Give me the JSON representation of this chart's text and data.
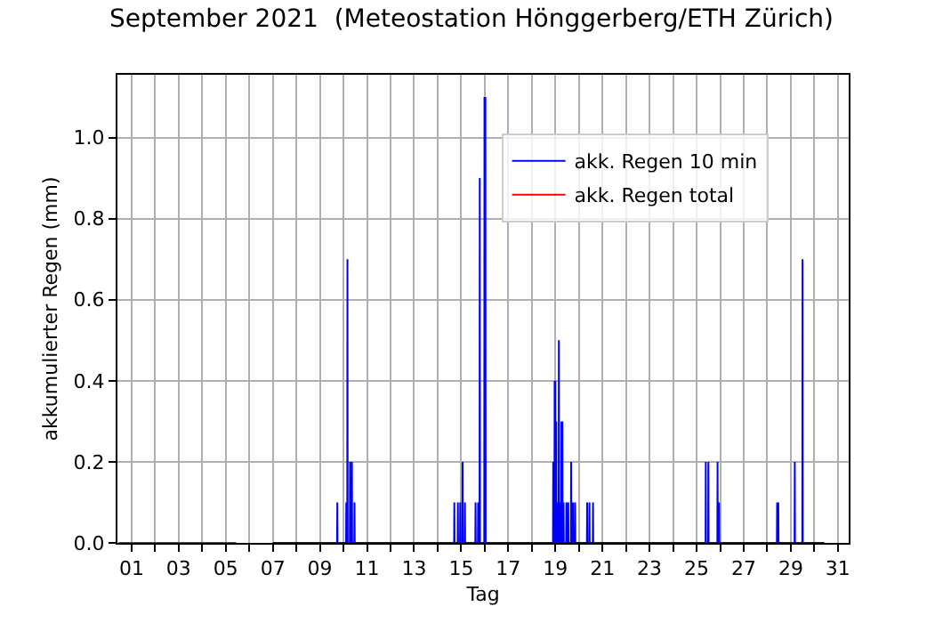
{
  "chart_data": {
    "type": "line",
    "title": "September 2021  (Meteostation Hönggerberg/ETH Zürich)",
    "xlabel": "Tag",
    "ylabel": "akkumulierter Regen (mm)",
    "xlim": [
      0.4,
      31.46
    ],
    "ylim": [
      0,
      1.155
    ],
    "xticks": [
      {
        "value": 1,
        "label": "01"
      },
      {
        "value": 2,
        "label": null
      },
      {
        "value": 3,
        "label": "03"
      },
      {
        "value": 4,
        "label": null
      },
      {
        "value": 5,
        "label": "05"
      },
      {
        "value": 6,
        "label": null
      },
      {
        "value": 7,
        "label": "07"
      },
      {
        "value": 8,
        "label": null
      },
      {
        "value": 9,
        "label": "09"
      },
      {
        "value": 10,
        "label": null
      },
      {
        "value": 11,
        "label": "11"
      },
      {
        "value": 12,
        "label": null
      },
      {
        "value": 13,
        "label": "13"
      },
      {
        "value": 14,
        "label": null
      },
      {
        "value": 15,
        "label": "15"
      },
      {
        "value": 16,
        "label": null
      },
      {
        "value": 17,
        "label": "17"
      },
      {
        "value": 18,
        "label": null
      },
      {
        "value": 19,
        "label": "19"
      },
      {
        "value": 20,
        "label": null
      },
      {
        "value": 21,
        "label": "21"
      },
      {
        "value": 22,
        "label": null
      },
      {
        "value": 23,
        "label": "23"
      },
      {
        "value": 24,
        "label": null
      },
      {
        "value": 25,
        "label": "25"
      },
      {
        "value": 26,
        "label": null
      },
      {
        "value": 27,
        "label": "27"
      },
      {
        "value": 28,
        "label": null
      },
      {
        "value": 29,
        "label": "29"
      },
      {
        "value": 30,
        "label": null
      },
      {
        "value": 31,
        "label": "31"
      }
    ],
    "yticks": [
      {
        "value": 0,
        "label": "0.0"
      },
      {
        "value": 0.2,
        "label": "0.2"
      },
      {
        "value": 0.4,
        "label": "0.4"
      },
      {
        "value": 0.6,
        "label": "0.6"
      },
      {
        "value": 0.8,
        "label": "0.8"
      },
      {
        "value": 1.0,
        "label": "1.0"
      }
    ],
    "grid": true,
    "legend": "right",
    "marker": "none",
    "line_style": "solid",
    "series": [
      {
        "name": "akk. Regen 10 min",
        "color": "#0000ff",
        "x": [
          7.0,
          9.73,
          9.74,
          9.75,
          10.11,
          10.12,
          10.13,
          10.16,
          10.17,
          10.18,
          10.27,
          10.28,
          10.29,
          10.35,
          10.36,
          10.37,
          10.46,
          10.47,
          10.48,
          14.7,
          14.71,
          14.72,
          14.85,
          14.86,
          14.87,
          14.95,
          14.96,
          14.97,
          15.05,
          15.06,
          15.07,
          15.15,
          15.16,
          15.17,
          15.6,
          15.61,
          15.62,
          15.71,
          15.72,
          15.73,
          15.78,
          15.79,
          15.8,
          15.98,
          15.99,
          16.0,
          16.02,
          16.03,
          16.04,
          18.9,
          18.91,
          18.92,
          18.96,
          18.97,
          18.98,
          18.99,
          19.0,
          19.01,
          19.03,
          19.04,
          19.05,
          19.09,
          19.1,
          19.11,
          19.14,
          19.15,
          19.16,
          19.19,
          19.2,
          19.21,
          19.25,
          19.26,
          19.27,
          19.29,
          19.3,
          19.31,
          19.34,
          19.35,
          19.36,
          19.46,
          19.47,
          19.48,
          19.54,
          19.55,
          19.56,
          19.66,
          19.67,
          19.68,
          19.74,
          19.75,
          19.76,
          19.83,
          19.84,
          19.85,
          20.34,
          20.35,
          20.36,
          20.44,
          20.45,
          20.46,
          20.59,
          20.6,
          20.61,
          25.38,
          25.39,
          25.4,
          25.49,
          25.5,
          25.51,
          25.88,
          25.89,
          25.9,
          25.94,
          25.95,
          25.96,
          28.41,
          28.42,
          28.43,
          28.46,
          28.47,
          28.48,
          29.16,
          29.17,
          29.18,
          29.49,
          29.5,
          29.51,
          30.43
        ],
        "values": [
          0,
          0,
          0.1,
          0,
          0,
          0.1,
          0,
          0,
          0.7,
          0,
          0,
          0.2,
          0,
          0,
          0.2,
          0,
          0,
          0.1,
          0,
          0,
          0.1,
          0,
          0,
          0.1,
          0,
          0,
          0.1,
          0,
          0,
          0.2,
          0,
          0,
          0.1,
          0,
          0,
          0.1,
          0,
          0,
          0.1,
          0,
          0,
          0.9,
          0,
          0,
          1.1,
          0,
          0,
          1.1,
          0,
          0,
          0.2,
          0,
          0,
          0.4,
          0,
          0,
          0.4,
          0,
          0,
          0.3,
          0,
          0,
          0.1,
          0,
          0,
          0.5,
          0,
          0,
          0.1,
          0,
          0,
          0.3,
          0,
          0,
          0.3,
          0,
          0,
          0.1,
          0,
          0,
          0.1,
          0,
          0,
          0.1,
          0,
          0,
          0.2,
          0,
          0,
          0.1,
          0,
          0,
          0.1,
          0,
          0,
          0.1,
          0,
          0,
          0.1,
          0,
          0,
          0.1,
          0,
          0,
          0.2,
          0,
          0,
          0.2,
          0,
          0,
          0.2,
          0,
          0,
          0.1,
          0,
          0,
          0.1,
          0,
          0,
          0.1,
          0,
          0,
          0.2,
          0,
          0,
          0.7,
          0,
          0
        ]
      },
      {
        "name": "akk. Regen total",
        "color": "#ff0000",
        "x": [
          0.45,
          5.44
        ],
        "values": [
          0,
          0
        ]
      }
    ]
  }
}
